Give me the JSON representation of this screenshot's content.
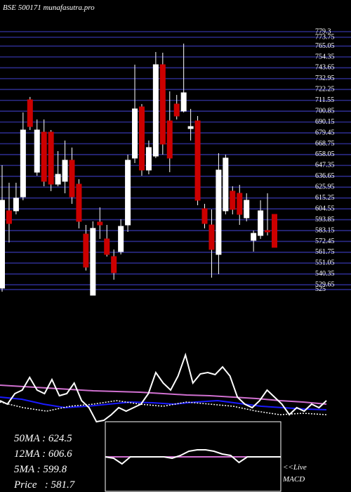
{
  "chart_data": [
    {
      "type": "candlestick",
      "title": "BSE 500171 munafasutra.pro",
      "up_color": "#ffffff",
      "down_color": "#cc0000",
      "grid": true,
      "grid_color": "#2b2b88",
      "ylim": [
        519.4,
        779.3
      ],
      "yticks": [
        779.3,
        773.75,
        765.05,
        754.35,
        743.65,
        732.95,
        722.25,
        711.55,
        700.85,
        690.15,
        679.45,
        668.75,
        658.05,
        647.35,
        636.65,
        625.95,
        615.25,
        604.55,
        593.85,
        583.15,
        572.45,
        561.75,
        551.05,
        540.35,
        529.65,
        525
      ],
      "open": [
        526.4,
        602.6,
        602.6,
        616.4,
        712.1,
        640.7,
        680.2,
        680.2,
        628.9,
        631.7,
        652.5,
        628.9,
        579.7,
        519.4,
        591.5,
        574.9,
        557.5,
        562.4,
        588.7,
        654.6,
        705.1,
        642.8,
        656.6,
        746.7,
        691.3,
        707.9,
        701.0,
        683.7,
        691.3,
        604.7,
        588.7,
        559.6,
        602.6,
        622.0,
        619.9,
        595.7,
        573.5,
        578.3,
        583.2,
        599.1
      ],
      "high": [
        647.6,
        630.3,
        630.3,
        699.6,
        714.9,
        692.7,
        692.7,
        682.3,
        661.5,
        671.9,
        665.0,
        633.8,
        588.7,
        592.2,
        606.0,
        588.7,
        564.5,
        594.3,
        658.0,
        746.7,
        707.9,
        671.9,
        759.2,
        758.5,
        720.4,
        716.9,
        767.5,
        703.1,
        696.1,
        609.5,
        604.0,
        659.4,
        658.0,
        626.8,
        628.2,
        619.9,
        583.2,
        613.0,
        619.9,
        599.1
      ],
      "low": [
        522.9,
        571.4,
        599.1,
        613.0,
        682.3,
        637.2,
        626.8,
        622.0,
        626.8,
        619.9,
        609.5,
        585.3,
        543.7,
        519.4,
        574.9,
        557.5,
        534.7,
        559.6,
        581.8,
        649.7,
        637.2,
        638.6,
        654.6,
        658.0,
        640.7,
        692.7,
        699.6,
        671.9,
        608.1,
        585.3,
        536.7,
        540.2,
        599.1,
        599.1,
        588.7,
        592.2,
        562.4,
        574.9,
        578.3,
        566.6
      ],
      "close": [
        613.0,
        590.1,
        615.1,
        682.3,
        685.7,
        682.3,
        631.7,
        628.9,
        638.6,
        652.5,
        616.4,
        592.2,
        547.1,
        585.3,
        588.7,
        559.6,
        541.6,
        587.3,
        652.5,
        703.1,
        642.8,
        665.0,
        746.7,
        668.4,
        654.6,
        696.1,
        719.0,
        685.7,
        613.0,
        590.1,
        564.5,
        642.8,
        654.6,
        604.0,
        599.1,
        613.0,
        580.4,
        602.6,
        581.8,
        566.6
      ]
    },
    {
      "type": "line",
      "ylim": [
        0,
        100
      ],
      "annotations": [
        "50MA : 624.5",
        "12MA : 606.6",
        "5MA : 599.8",
        "Price   : 581.7"
      ],
      "series": [
        {
          "color": "#d070d0",
          "style": "solid",
          "values": [
            52,
            50,
            48,
            46,
            44,
            43,
            42,
            40,
            38,
            37,
            35,
            33,
            30,
            28,
            25
          ]
        },
        {
          "color": "#1a1aff",
          "style": "solid",
          "values": [
            35,
            32,
            25,
            20,
            22,
            25,
            28,
            27,
            25,
            28,
            30,
            26,
            22,
            20,
            18,
            17
          ]
        },
        {
          "color": "#ffffff",
          "style": "dotted",
          "values": [
            28,
            20,
            15,
            22,
            25,
            30,
            25,
            22,
            28,
            25,
            22,
            15,
            10,
            12,
            10
          ]
        },
        {
          "color": "#ffffff",
          "style": "solid",
          "values": [
            30,
            25,
            40,
            45,
            63,
            45,
            40,
            60,
            37,
            40,
            55,
            30,
            20,
            0,
            2,
            10,
            20,
            15,
            20,
            25,
            40,
            70,
            55,
            45,
            65,
            95,
            55,
            68,
            70,
            67,
            78,
            65,
            35,
            25,
            20,
            30,
            45,
            35,
            25,
            10,
            20,
            15,
            25,
            20,
            30
          ]
        }
      ]
    },
    {
      "type": "line",
      "ylim": [
        0,
        100
      ],
      "annotations": [
        "<<Live",
        "MACD"
      ],
      "series": [
        {
          "color": "#d070d0",
          "style": "solid",
          "values": [
            50,
            50
          ]
        },
        {
          "color": "#ffffff",
          "style": "solid",
          "values": [
            50,
            48,
            40,
            50,
            50,
            50,
            50,
            50,
            48,
            52,
            58,
            60,
            60,
            58,
            54,
            52,
            42,
            50,
            50,
            50,
            50,
            50
          ]
        }
      ]
    }
  ]
}
